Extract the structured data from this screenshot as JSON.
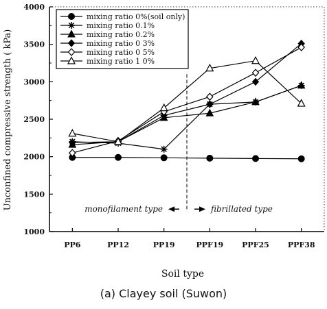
{
  "chart_data": {
    "type": "line",
    "title": "",
    "caption": "(a) Clayey soil (Suwon)",
    "xlabel": "Soil type",
    "ylabel": "Unconfined compressive strength ( kPa)",
    "categories": [
      "PP6",
      "PP12",
      "PP19",
      "PPF19",
      "PPF25",
      "PPF38"
    ],
    "ylim": [
      1000,
      4000
    ],
    "yticks": [
      1000,
      1500,
      2000,
      2500,
      3000,
      3500,
      4000
    ],
    "grid": false,
    "legend_position": "top-left",
    "series": [
      {
        "name": "mixing ratio 0%(soil only)",
        "marker": "filled-circle",
        "values": [
          1990,
          1990,
          1985,
          1980,
          1975,
          1972
        ]
      },
      {
        "name": "mixing ratio 0.1%",
        "marker": "asterisk",
        "values": [
          2200,
          2180,
          2100,
          2700,
          2730,
          2950
        ]
      },
      {
        "name": "mixing ratio 0.2%",
        "marker": "filled-triangle",
        "values": [
          2160,
          2200,
          2520,
          2580,
          2730,
          2950
        ]
      },
      {
        "name": "mixing ratio 0 3%",
        "marker": "filled-diamond",
        "values": [
          2190,
          2200,
          2550,
          2700,
          3000,
          3510
        ]
      },
      {
        "name": "mixing ratio 0 5%",
        "marker": "open-diamond",
        "values": [
          2050,
          2210,
          2600,
          2800,
          3120,
          3460
        ]
      },
      {
        "name": "mixing ratio 1 0%",
        "marker": "open-triangle",
        "values": [
          2310,
          2200,
          2650,
          3180,
          3280,
          2710
        ]
      }
    ],
    "annotations": {
      "left": "monofilament type",
      "right": "fibrillated type"
    }
  }
}
